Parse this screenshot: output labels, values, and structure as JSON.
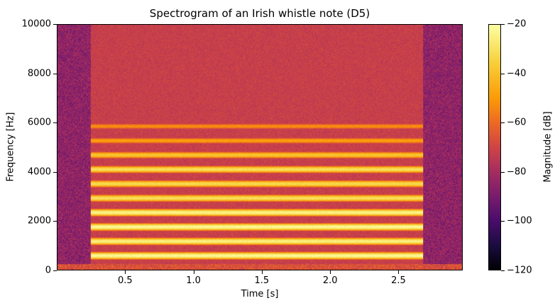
{
  "chart_data": {
    "type": "heatmap",
    "title": "Spectrogram of an Irish whistle note (D5)",
    "xlabel": "Time [s]",
    "ylabel": "Frequency [Hz]",
    "colorbar_label": "Magnitude [dB]",
    "xlim": [
      0,
      2.97
    ],
    "ylim": [
      0,
      10000
    ],
    "clim": [
      -120,
      -20
    ],
    "colormap": "inferno",
    "x_ticks": [
      "0.5",
      "1.0",
      "1.5",
      "2.0",
      "2.5"
    ],
    "x_tick_values": [
      0.5,
      1.0,
      1.5,
      2.0,
      2.5
    ],
    "y_ticks": [
      "0",
      "2000",
      "4000",
      "6000",
      "8000",
      "10000"
    ],
    "y_tick_values": [
      0,
      2000,
      4000,
      6000,
      8000,
      10000
    ],
    "colorbar_ticks": [
      "−20",
      "−40",
      "−60",
      "−80",
      "−100",
      "−120"
    ],
    "colorbar_tick_values": [
      -20,
      -40,
      -60,
      -80,
      -100,
      -120
    ],
    "note_onset_s": 0.24,
    "note_offset_s": 2.68,
    "fundamental_hz": 587,
    "harmonics_hz": [
      587,
      1174,
      1761,
      2348,
      2935,
      3522,
      4109,
      4696,
      5283,
      5870
    ],
    "harmonic_peak_db": [
      -22,
      -25,
      -22,
      -24,
      -30,
      -32,
      -30,
      -38,
      -48,
      -52
    ],
    "noise_floor_db": -85,
    "grid": false
  }
}
